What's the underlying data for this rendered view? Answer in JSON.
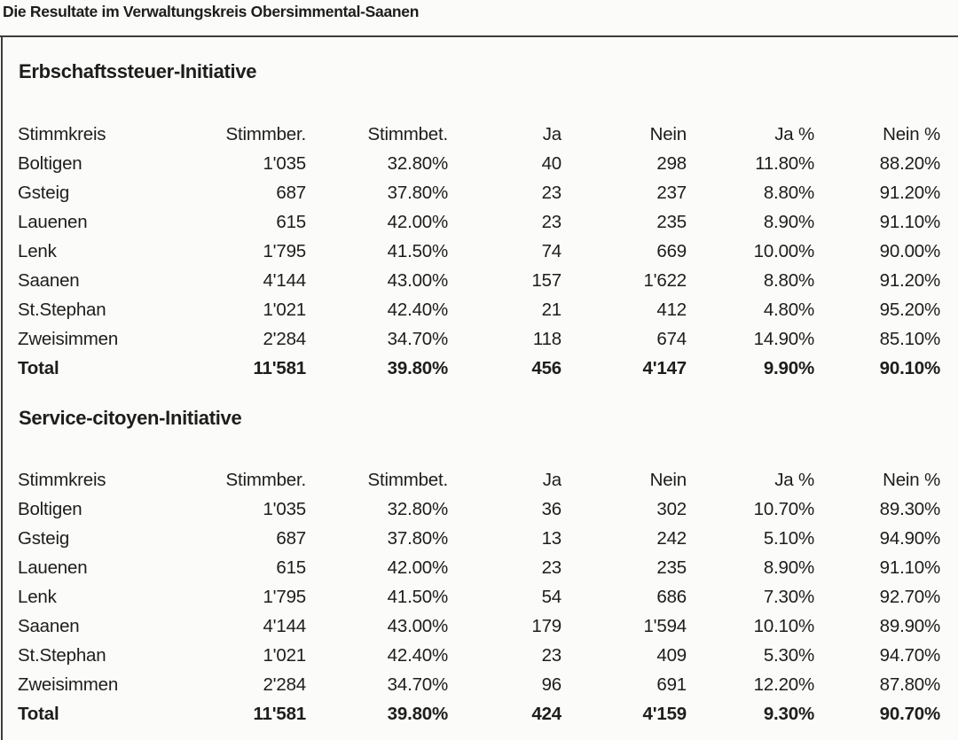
{
  "page": {
    "title": "Die Resultate im Verwaltungskreis Obersimmental-Saanen"
  },
  "colors": {
    "text": "#1d1d1b",
    "rule": "#3c3c3a",
    "background": "#fbfbf9"
  },
  "columns": [
    "Stimmkreis",
    "Stimmber.",
    "Stimmbet.",
    "Ja",
    "Nein",
    "Ja %",
    "Nein %"
  ],
  "tables": [
    {
      "title": "Erbschaftssteuer-Initiative",
      "rows": [
        [
          "Boltigen",
          "1'035",
          "32.80%",
          "40",
          "298",
          "11.80%",
          "88.20%"
        ],
        [
          "Gsteig",
          "687",
          "37.80%",
          "23",
          "237",
          "8.80%",
          "91.20%"
        ],
        [
          "Lauenen",
          "615",
          "42.00%",
          "23",
          "235",
          "8.90%",
          "91.10%"
        ],
        [
          "Lenk",
          "1'795",
          "41.50%",
          "74",
          "669",
          "10.00%",
          "90.00%"
        ],
        [
          "Saanen",
          "4'144",
          "43.00%",
          "157",
          "1'622",
          "8.80%",
          "91.20%"
        ],
        [
          "St.Stephan",
          "1'021",
          "42.40%",
          "21",
          "412",
          "4.80%",
          "95.20%"
        ],
        [
          "Zweisimmen",
          "2'284",
          "34.70%",
          "118",
          "674",
          "14.90%",
          "85.10%"
        ],
        [
          "Total",
          "11'581",
          "39.80%",
          "456",
          "4'147",
          "9.90%",
          "90.10%"
        ]
      ]
    },
    {
      "title": "Service-citoyen-Initiative",
      "rows": [
        [
          "Boltigen",
          "1'035",
          "32.80%",
          "36",
          "302",
          "10.70%",
          "89.30%"
        ],
        [
          "Gsteig",
          "687",
          "37.80%",
          "13",
          "242",
          "5.10%",
          "94.90%"
        ],
        [
          "Lauenen",
          "615",
          "42.00%",
          "23",
          "235",
          "8.90%",
          "91.10%"
        ],
        [
          "Lenk",
          "1'795",
          "41.50%",
          "54",
          "686",
          "7.30%",
          "92.70%"
        ],
        [
          "Saanen",
          "4'144",
          "43.00%",
          "179",
          "1'594",
          "10.10%",
          "89.90%"
        ],
        [
          "St.Stephan",
          "1'021",
          "42.40%",
          "23",
          "409",
          "5.30%",
          "94.70%"
        ],
        [
          "Zweisimmen",
          "2'284",
          "34.70%",
          "96",
          "691",
          "12.20%",
          "87.80%"
        ],
        [
          "Total",
          "11'581",
          "39.80%",
          "424",
          "4'159",
          "9.30%",
          "90.70%"
        ]
      ]
    }
  ]
}
